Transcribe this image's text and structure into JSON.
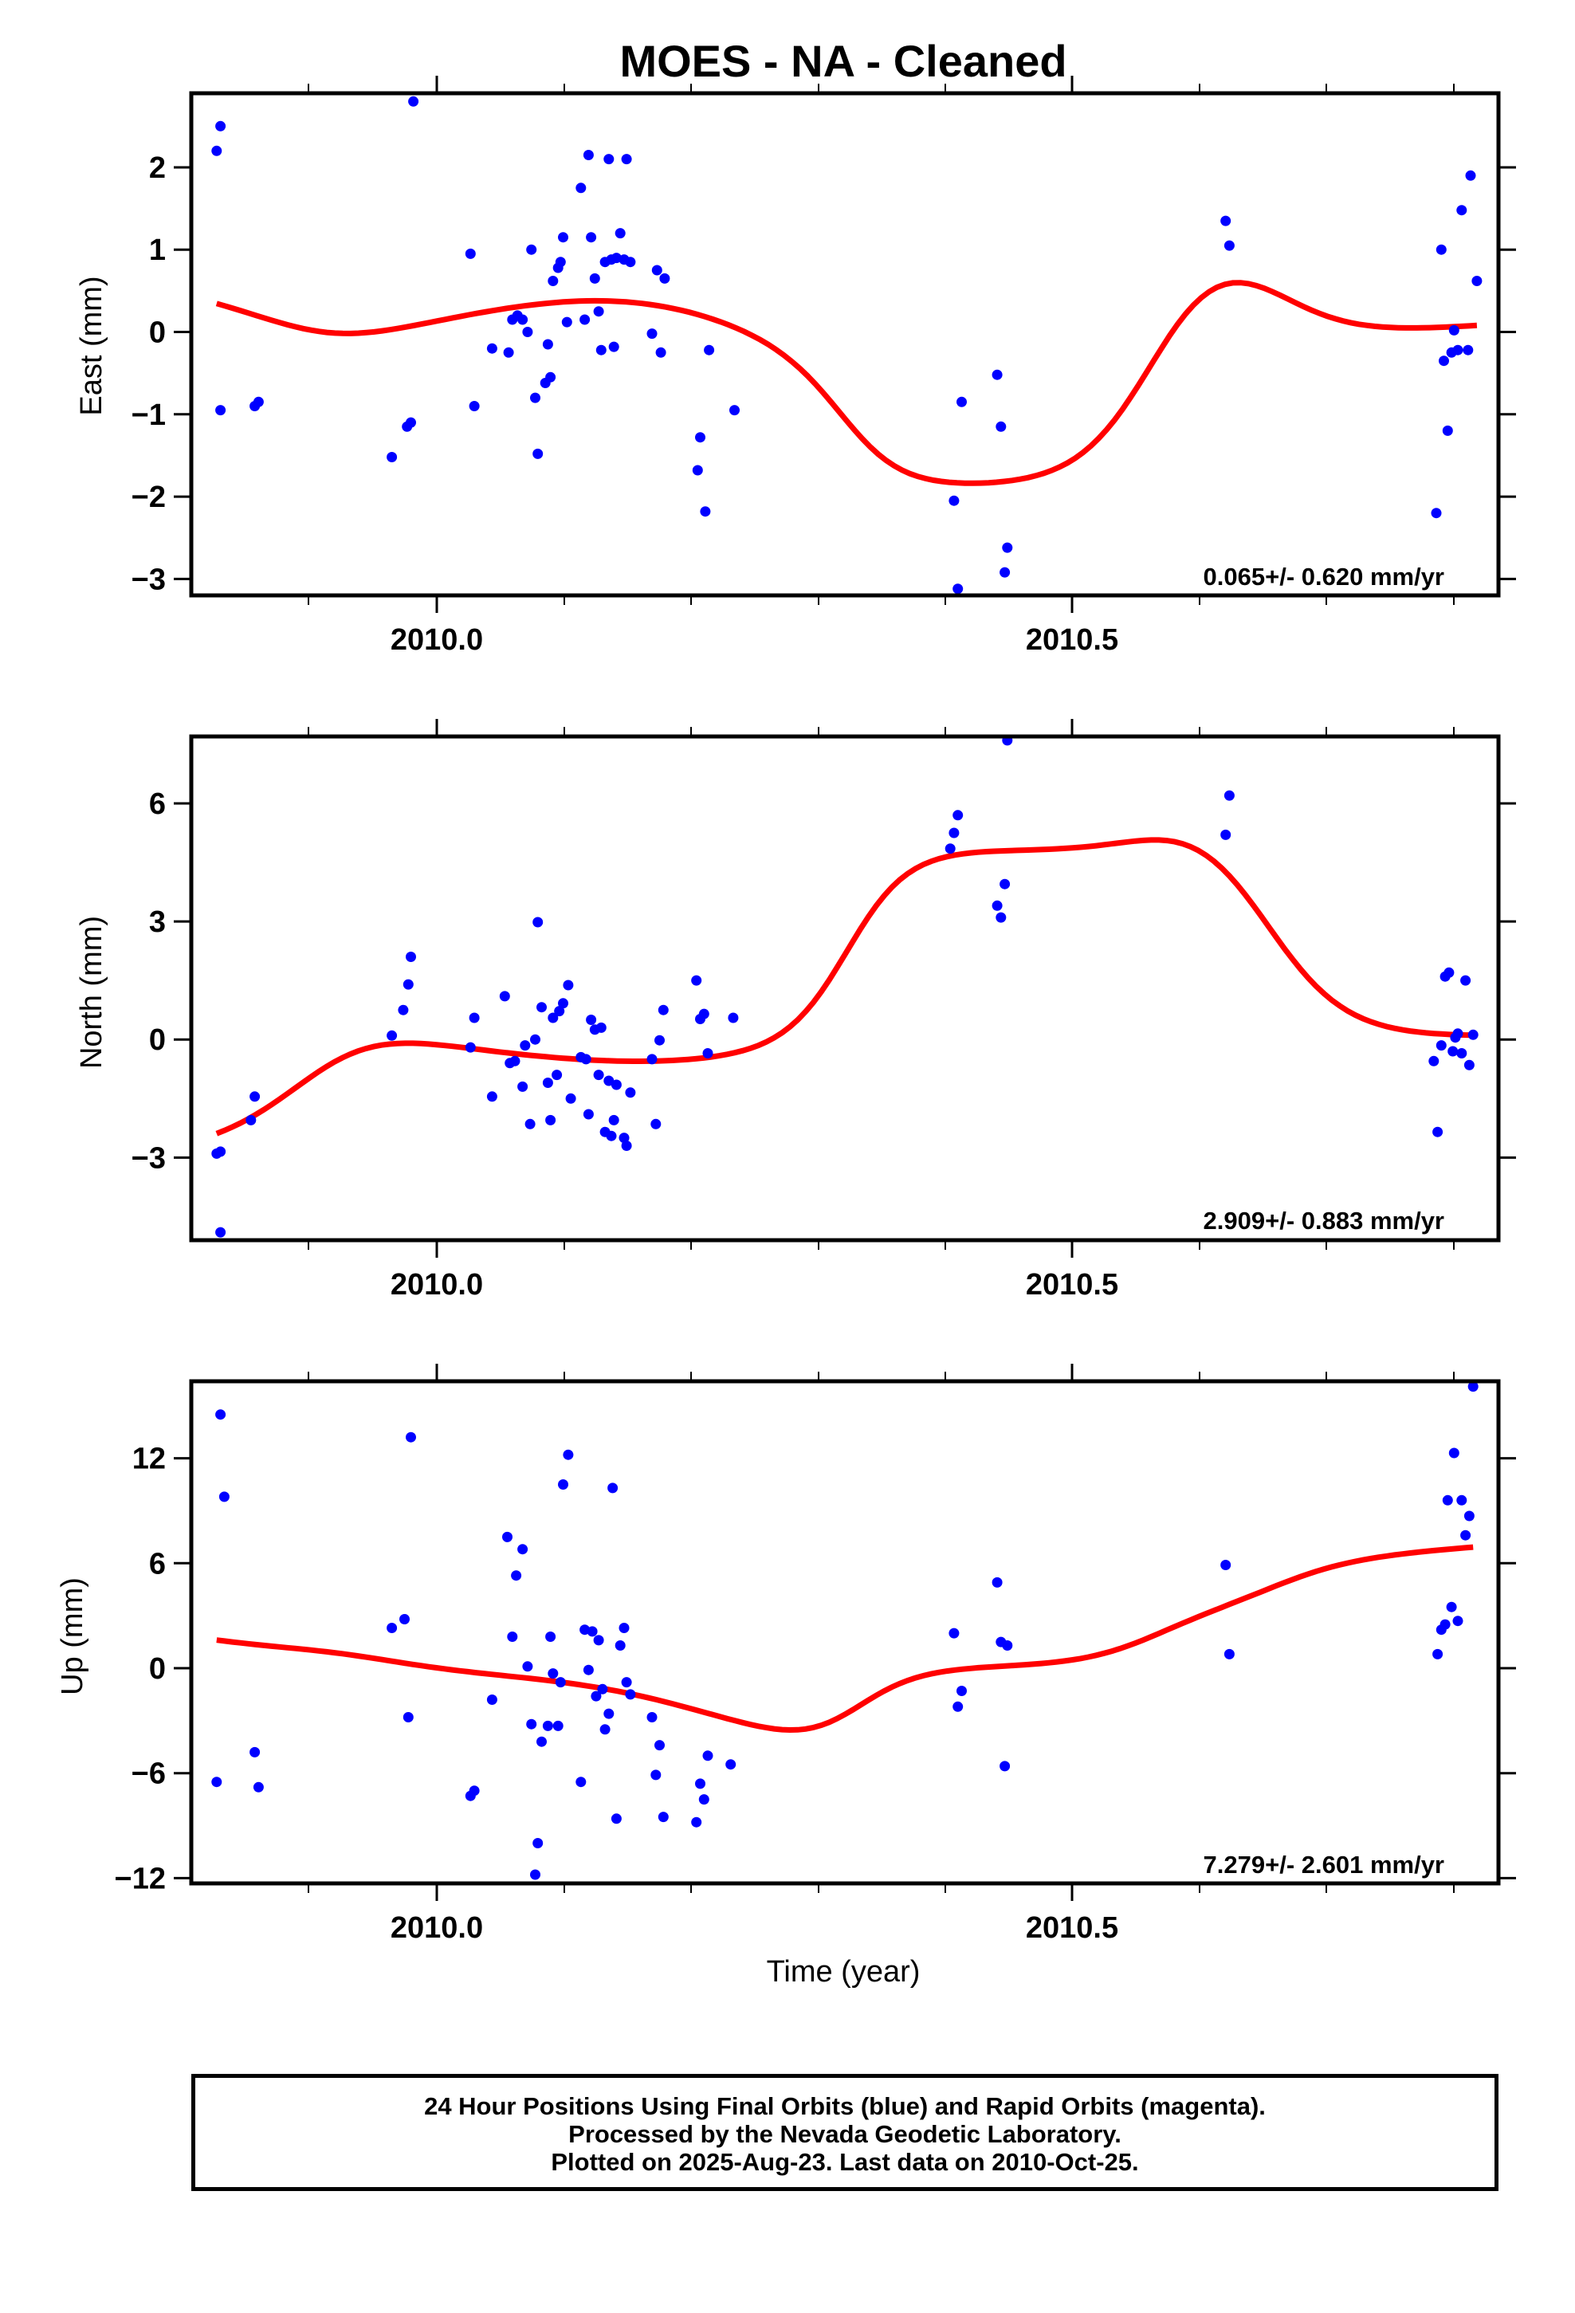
{
  "title": "MOES  - NA - Cleaned",
  "xlabel": "Time (year)",
  "footer": {
    "line1": "24 Hour Positions Using Final Orbits (blue) and Rapid Orbits (magenta).",
    "line2": "Processed by the Nevada Geodetic Laboratory.",
    "line3": "Plotted on 2025-Aug-23. Last data on 2010-Oct-25."
  },
  "colors": {
    "points": "#0000ff",
    "fit": "#ff0000",
    "frame": "#000000"
  },
  "chart_data": [
    {
      "type": "scatter",
      "ylabel": "East (mm)",
      "rate_label": "0.065+/- 0.620 mm/yr",
      "xlim": [
        2009.805,
        2010.835
      ],
      "ylim": [
        -3.2,
        2.9
      ],
      "xticks": [
        "2010.0",
        "2010.5"
      ],
      "yticks": [
        2,
        1,
        0,
        -1,
        -2,
        -3
      ],
      "ytick_labels": [
        "2",
        "1",
        "0",
        "−1",
        "−2",
        "−3"
      ],
      "points": [
        [
          2009.825,
          2.2
        ],
        [
          2009.828,
          2.5
        ],
        [
          2009.828,
          -0.95
        ],
        [
          2009.855,
          -0.9
        ],
        [
          2009.858,
          -0.85
        ],
        [
          2009.963,
          -1.52
        ],
        [
          2009.975,
          -1.15
        ],
        [
          2009.978,
          -1.1
        ],
        [
          2009.98,
          2.8
        ],
        [
          2010.025,
          0.95
        ],
        [
          2010.028,
          -0.9
        ],
        [
          2010.042,
          -0.2
        ],
        [
          2010.055,
          -0.25
        ],
        [
          2010.058,
          0.15
        ],
        [
          2010.062,
          0.2
        ],
        [
          2010.066,
          0.15
        ],
        [
          2010.07,
          0.0
        ],
        [
          2010.073,
          1.0
        ],
        [
          2010.076,
          -0.8
        ],
        [
          2010.078,
          -1.48
        ],
        [
          2010.084,
          -0.62
        ],
        [
          2010.086,
          -0.15
        ],
        [
          2010.088,
          -0.55
        ],
        [
          2010.09,
          0.62
        ],
        [
          2010.094,
          0.78
        ],
        [
          2010.096,
          0.85
        ],
        [
          2010.098,
          1.15
        ],
        [
          2010.101,
          0.12
        ],
        [
          2010.112,
          1.75
        ],
        [
          2010.115,
          0.15
        ],
        [
          2010.118,
          2.15
        ],
        [
          2010.12,
          1.15
        ],
        [
          2010.123,
          0.65
        ],
        [
          2010.126,
          0.25
        ],
        [
          2010.128,
          -0.22
        ],
        [
          2010.131,
          0.85
        ],
        [
          2010.134,
          2.1
        ],
        [
          2010.136,
          0.88
        ],
        [
          2010.138,
          -0.18
        ],
        [
          2010.14,
          0.9
        ],
        [
          2010.143,
          1.2
        ],
        [
          2010.146,
          0.88
        ],
        [
          2010.148,
          2.1
        ],
        [
          2010.151,
          0.85
        ],
        [
          2010.168,
          -0.02
        ],
        [
          2010.172,
          0.75
        ],
        [
          2010.175,
          -0.25
        ],
        [
          2010.178,
          0.65
        ],
        [
          2010.206,
          -1.28
        ],
        [
          2010.204,
          -1.68
        ],
        [
          2010.21,
          -2.18
        ],
        [
          2010.213,
          -0.22
        ],
        [
          2010.233,
          -0.95
        ],
        [
          2010.406,
          -2.05
        ],
        [
          2010.409,
          -3.12
        ],
        [
          2010.412,
          -0.85
        ],
        [
          2010.44,
          -0.52
        ],
        [
          2010.443,
          -1.15
        ],
        [
          2010.446,
          -2.92
        ],
        [
          2010.448,
          -2.62
        ],
        [
          2010.62,
          1.35
        ],
        [
          2010.623,
          1.05
        ],
        [
          2010.786,
          -2.2
        ],
        [
          2010.79,
          1.0
        ],
        [
          2010.792,
          -0.35
        ],
        [
          2010.795,
          -1.2
        ],
        [
          2010.798,
          -0.25
        ],
        [
          2010.8,
          0.02
        ],
        [
          2010.803,
          -0.22
        ],
        [
          2010.806,
          1.48
        ],
        [
          2010.811,
          -0.22
        ],
        [
          2010.813,
          1.9
        ],
        [
          2010.818,
          0.62
        ]
      ]
    },
    {
      "type": "scatter",
      "ylabel": "North (mm)",
      "rate_label": "2.909+/- 0.883 mm/yr",
      "xlim": [
        2009.805,
        2010.835
      ],
      "ylim": [
        -5.1,
        7.7
      ],
      "xticks": [
        "2010.0",
        "2010.5"
      ],
      "yticks": [
        6,
        3,
        0,
        -3
      ],
      "ytick_labels": [
        "6",
        "3",
        "0",
        "−3"
      ],
      "points": [
        [
          2009.825,
          -2.9
        ],
        [
          2009.828,
          -2.85
        ],
        [
          2009.828,
          -4.9
        ],
        [
          2009.852,
          -2.05
        ],
        [
          2009.855,
          -1.45
        ],
        [
          2009.963,
          0.1
        ],
        [
          2009.972,
          0.75
        ],
        [
          2009.976,
          1.4
        ],
        [
          2009.978,
          2.1
        ],
        [
          2010.025,
          -0.2
        ],
        [
          2010.028,
          0.55
        ],
        [
          2010.042,
          -1.45
        ],
        [
          2010.052,
          1.1
        ],
        [
          2010.056,
          -0.6
        ],
        [
          2010.06,
          -0.55
        ],
        [
          2010.066,
          -1.2
        ],
        [
          2010.068,
          -0.15
        ],
        [
          2010.072,
          -2.15
        ],
        [
          2010.076,
          0.0
        ],
        [
          2010.078,
          2.98
        ],
        [
          2010.081,
          0.82
        ],
        [
          2010.086,
          -1.1
        ],
        [
          2010.088,
          -2.05
        ],
        [
          2010.09,
          0.55
        ],
        [
          2010.093,
          -0.9
        ],
        [
          2010.095,
          0.72
        ],
        [
          2010.098,
          0.92
        ],
        [
          2010.102,
          1.38
        ],
        [
          2010.104,
          -1.5
        ],
        [
          2010.112,
          -0.45
        ],
        [
          2010.116,
          -0.5
        ],
        [
          2010.118,
          -1.9
        ],
        [
          2010.12,
          0.5
        ],
        [
          2010.123,
          0.25
        ],
        [
          2010.126,
          -0.9
        ],
        [
          2010.128,
          0.3
        ],
        [
          2010.131,
          -2.35
        ],
        [
          2010.134,
          -1.05
        ],
        [
          2010.136,
          -2.45
        ],
        [
          2010.138,
          -2.05
        ],
        [
          2010.14,
          -1.15
        ],
        [
          2010.146,
          -2.5
        ],
        [
          2010.148,
          -2.7
        ],
        [
          2010.151,
          -1.35
        ],
        [
          2010.168,
          -0.5
        ],
        [
          2010.171,
          -2.15
        ],
        [
          2010.174,
          -0.02
        ],
        [
          2010.177,
          0.75
        ],
        [
          2010.203,
          1.5
        ],
        [
          2010.206,
          0.52
        ],
        [
          2010.209,
          0.65
        ],
        [
          2010.212,
          -0.35
        ],
        [
          2010.232,
          0.55
        ],
        [
          2010.403,
          4.85
        ],
        [
          2010.406,
          5.25
        ],
        [
          2010.409,
          5.7
        ],
        [
          2010.44,
          3.4
        ],
        [
          2010.443,
          3.1
        ],
        [
          2010.446,
          3.95
        ],
        [
          2010.448,
          7.6
        ],
        [
          2010.62,
          5.2
        ],
        [
          2010.623,
          6.2
        ],
        [
          2010.784,
          -0.55
        ],
        [
          2010.787,
          -2.35
        ],
        [
          2010.79,
          -0.15
        ],
        [
          2010.793,
          1.6
        ],
        [
          2010.796,
          1.7
        ],
        [
          2010.799,
          -0.3
        ],
        [
          2010.801,
          0.05
        ],
        [
          2010.803,
          0.15
        ],
        [
          2010.806,
          -0.35
        ],
        [
          2010.809,
          1.5
        ],
        [
          2010.812,
          -0.65
        ],
        [
          2010.815,
          0.12
        ]
      ]
    },
    {
      "type": "scatter",
      "ylabel": "Up (mm)",
      "rate_label": "7.279+/- 2.601 mm/yr",
      "xlim": [
        2009.805,
        2010.835
      ],
      "ylim": [
        -12.3,
        16.4
      ],
      "xticks": [
        "2010.0",
        "2010.5"
      ],
      "yticks": [
        12,
        6,
        0,
        -6,
        -12
      ],
      "ytick_labels": [
        "12",
        "6",
        "0",
        "−6",
        "−12"
      ],
      "points": [
        [
          2009.825,
          -6.5
        ],
        [
          2009.828,
          14.5
        ],
        [
          2009.831,
          9.8
        ],
        [
          2009.855,
          -4.8
        ],
        [
          2009.858,
          -6.8
        ],
        [
          2009.963,
          2.3
        ],
        [
          2009.973,
          2.8
        ],
        [
          2009.976,
          -2.8
        ],
        [
          2009.978,
          13.2
        ],
        [
          2010.025,
          -7.3
        ],
        [
          2010.028,
          -7.0
        ],
        [
          2010.042,
          -1.8
        ],
        [
          2010.054,
          7.5
        ],
        [
          2010.058,
          1.8
        ],
        [
          2010.061,
          5.3
        ],
        [
          2010.066,
          6.8
        ],
        [
          2010.07,
          0.1
        ],
        [
          2010.073,
          -3.2
        ],
        [
          2010.076,
          -11.8
        ],
        [
          2010.078,
          -10.0
        ],
        [
          2010.081,
          -4.2
        ],
        [
          2010.086,
          -3.3
        ],
        [
          2010.088,
          1.8
        ],
        [
          2010.09,
          -0.3
        ],
        [
          2010.094,
          -3.3
        ],
        [
          2010.096,
          -0.8
        ],
        [
          2010.098,
          10.5
        ],
        [
          2010.102,
          12.2
        ],
        [
          2010.112,
          -6.5
        ],
        [
          2010.115,
          2.2
        ],
        [
          2010.118,
          -0.1
        ],
        [
          2010.121,
          2.1
        ],
        [
          2010.124,
          -1.6
        ],
        [
          2010.126,
          1.6
        ],
        [
          2010.129,
          -1.2
        ],
        [
          2010.131,
          -3.5
        ],
        [
          2010.134,
          -2.6
        ],
        [
          2010.137,
          10.3
        ],
        [
          2010.14,
          -8.6
        ],
        [
          2010.143,
          1.3
        ],
        [
          2010.146,
          2.3
        ],
        [
          2010.148,
          -0.8
        ],
        [
          2010.151,
          -1.5
        ],
        [
          2010.168,
          -2.8
        ],
        [
          2010.171,
          -6.1
        ],
        [
          2010.174,
          -4.4
        ],
        [
          2010.177,
          -8.5
        ],
        [
          2010.203,
          -8.8
        ],
        [
          2010.206,
          -6.6
        ],
        [
          2010.209,
          -7.5
        ],
        [
          2010.212,
          -5.0
        ],
        [
          2010.23,
          -5.5
        ],
        [
          2010.406,
          2.0
        ],
        [
          2010.409,
          -2.2
        ],
        [
          2010.412,
          -1.3
        ],
        [
          2010.44,
          4.9
        ],
        [
          2010.443,
          1.5
        ],
        [
          2010.446,
          -5.6
        ],
        [
          2010.448,
          1.3
        ],
        [
          2010.62,
          5.9
        ],
        [
          2010.623,
          0.8
        ],
        [
          2010.787,
          0.8
        ],
        [
          2010.79,
          2.2
        ],
        [
          2010.793,
          2.5
        ],
        [
          2010.795,
          9.6
        ],
        [
          2010.798,
          3.5
        ],
        [
          2010.8,
          12.3
        ],
        [
          2010.803,
          2.7
        ],
        [
          2010.806,
          9.6
        ],
        [
          2010.809,
          7.6
        ],
        [
          2010.812,
          8.7
        ],
        [
          2010.815,
          16.1
        ]
      ]
    }
  ]
}
